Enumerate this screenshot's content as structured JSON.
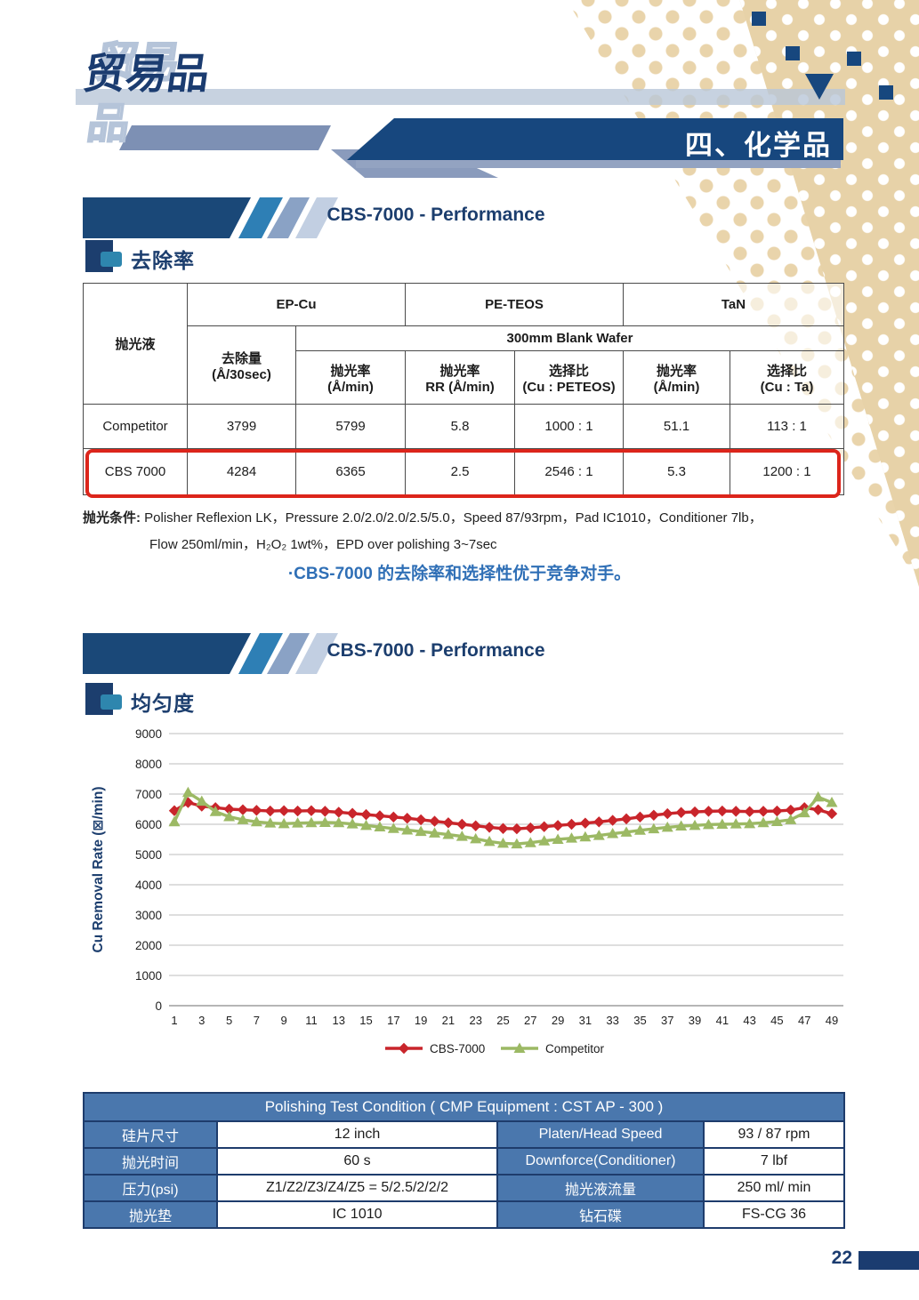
{
  "page": {
    "logo": "贸易品",
    "chapter_banner": "四、化学品",
    "page_number": "22"
  },
  "section1": {
    "title": "CBS-7000 - Performance",
    "label": "去除率"
  },
  "section2": {
    "title": "CBS-7000 - Performance",
    "label": "均匀度"
  },
  "removal_table": {
    "corner_header": "抛光液",
    "group_headers": [
      "EP-Cu",
      "PE-TEOS",
      "TaN"
    ],
    "sub_header": "300mm Blank Wafer",
    "removal_header_l1": "去除量",
    "removal_header_l2": "(Å/30sec)",
    "unit_headers": [
      {
        "l1": "抛光率",
        "l2": "(Å/min)"
      },
      {
        "l1": "抛光率",
        "l2": "RR (Å/min)"
      },
      {
        "l1": "选择比",
        "l2": "(Cu : PETEOS)"
      },
      {
        "l1": "抛光率",
        "l2": "(Å/min)"
      },
      {
        "l1": "选择比",
        "l2": "(Cu : Ta)"
      }
    ],
    "rows": [
      {
        "name": "Competitor",
        "values": [
          "3799",
          "5799",
          "5.8",
          "1000 : 1",
          "51.1",
          "113 : 1"
        ],
        "highlight": false
      },
      {
        "name": "CBS 7000",
        "values": [
          "4284",
          "6365",
          "2.5",
          "2546 : 1",
          "5.3",
          "1200 : 1"
        ],
        "highlight": true
      }
    ]
  },
  "footnote": {
    "label": "抛光条件:",
    "line1": "Polisher Reflexion LK，Pressure 2.0/2.0/2.0/2.5/5.0，Speed 87/93rpm，Pad IC1010，Conditioner 7lb，",
    "line2": "Flow 250ml/min，H₂O₂ 1wt%，EPD over polishing 3~7sec"
  },
  "statement": "·CBS-7000 的去除率和选择性优于竞争对手。",
  "chart_data": {
    "type": "line",
    "title": "",
    "xlabel": "",
    "ylabel": "Cu Removal Rate (⊠/min)",
    "ylim": [
      0,
      9000
    ],
    "yticks": [
      0,
      1000,
      2000,
      3000,
      4000,
      5000,
      6000,
      7000,
      8000,
      9000
    ],
    "xticks": [
      1,
      3,
      5,
      7,
      9,
      11,
      13,
      15,
      17,
      19,
      21,
      23,
      25,
      27,
      29,
      31,
      33,
      35,
      37,
      39,
      41,
      43,
      45,
      47,
      49
    ],
    "x_range": [
      1,
      49
    ],
    "grid": "horizontal",
    "legend_position": "bottom",
    "series": [
      {
        "name": "CBS-7000",
        "color": "#c9252b",
        "marker": "diamond",
        "values": [
          6450,
          6720,
          6600,
          6550,
          6500,
          6480,
          6460,
          6440,
          6450,
          6440,
          6450,
          6430,
          6400,
          6360,
          6320,
          6280,
          6240,
          6200,
          6150,
          6100,
          6050,
          6000,
          5950,
          5900,
          5860,
          5850,
          5880,
          5920,
          5960,
          6000,
          6040,
          6080,
          6130,
          6180,
          6240,
          6300,
          6350,
          6390,
          6410,
          6430,
          6440,
          6430,
          6420,
          6430,
          6440,
          6470,
          6550,
          6480,
          6350
        ]
      },
      {
        "name": "Competitor",
        "color": "#9cb964",
        "marker": "triangle",
        "values": [
          6080,
          7050,
          6760,
          6420,
          6250,
          6150,
          6080,
          6040,
          6020,
          6040,
          6050,
          6060,
          6050,
          6010,
          5960,
          5910,
          5860,
          5810,
          5760,
          5710,
          5660,
          5600,
          5520,
          5430,
          5370,
          5350,
          5390,
          5450,
          5500,
          5540,
          5580,
          5630,
          5690,
          5740,
          5800,
          5850,
          5900,
          5940,
          5960,
          5990,
          6000,
          6010,
          6020,
          6050,
          6090,
          6150,
          6380,
          6900,
          6720
        ]
      }
    ]
  },
  "condition_table": {
    "title": "Polishing Test Condition ( CMP Equipment : CST AP - 300 )",
    "rows": [
      [
        "硅片尺寸",
        "12 inch",
        "Platen/Head Speed",
        "93 / 87 rpm"
      ],
      [
        "抛光时间",
        "60 s",
        "Downforce(Conditioner)",
        "7 lbf"
      ],
      [
        "压力(psi)",
        "Z1/Z2/Z3/Z4/Z5 = 5/2.5/2/2/2",
        "抛光液流量",
        "250 ml/ min"
      ],
      [
        "抛光垫",
        "IC 1010",
        "钻石碟",
        "FS-CG 36"
      ]
    ]
  },
  "colors": {
    "navy": "#17477e",
    "navy_text": "#1c3e6e",
    "teal": "#2e7fb5",
    "slate": "#7d90b4",
    "pale_blue": "#c2cfe2",
    "steel_blue": "#4a77ad",
    "tan": "#e7d2a8",
    "red_series": "#c9252b",
    "green_series": "#9cb964",
    "highlight_red": "#dc251b",
    "statement_blue": "#2f6fb6"
  }
}
